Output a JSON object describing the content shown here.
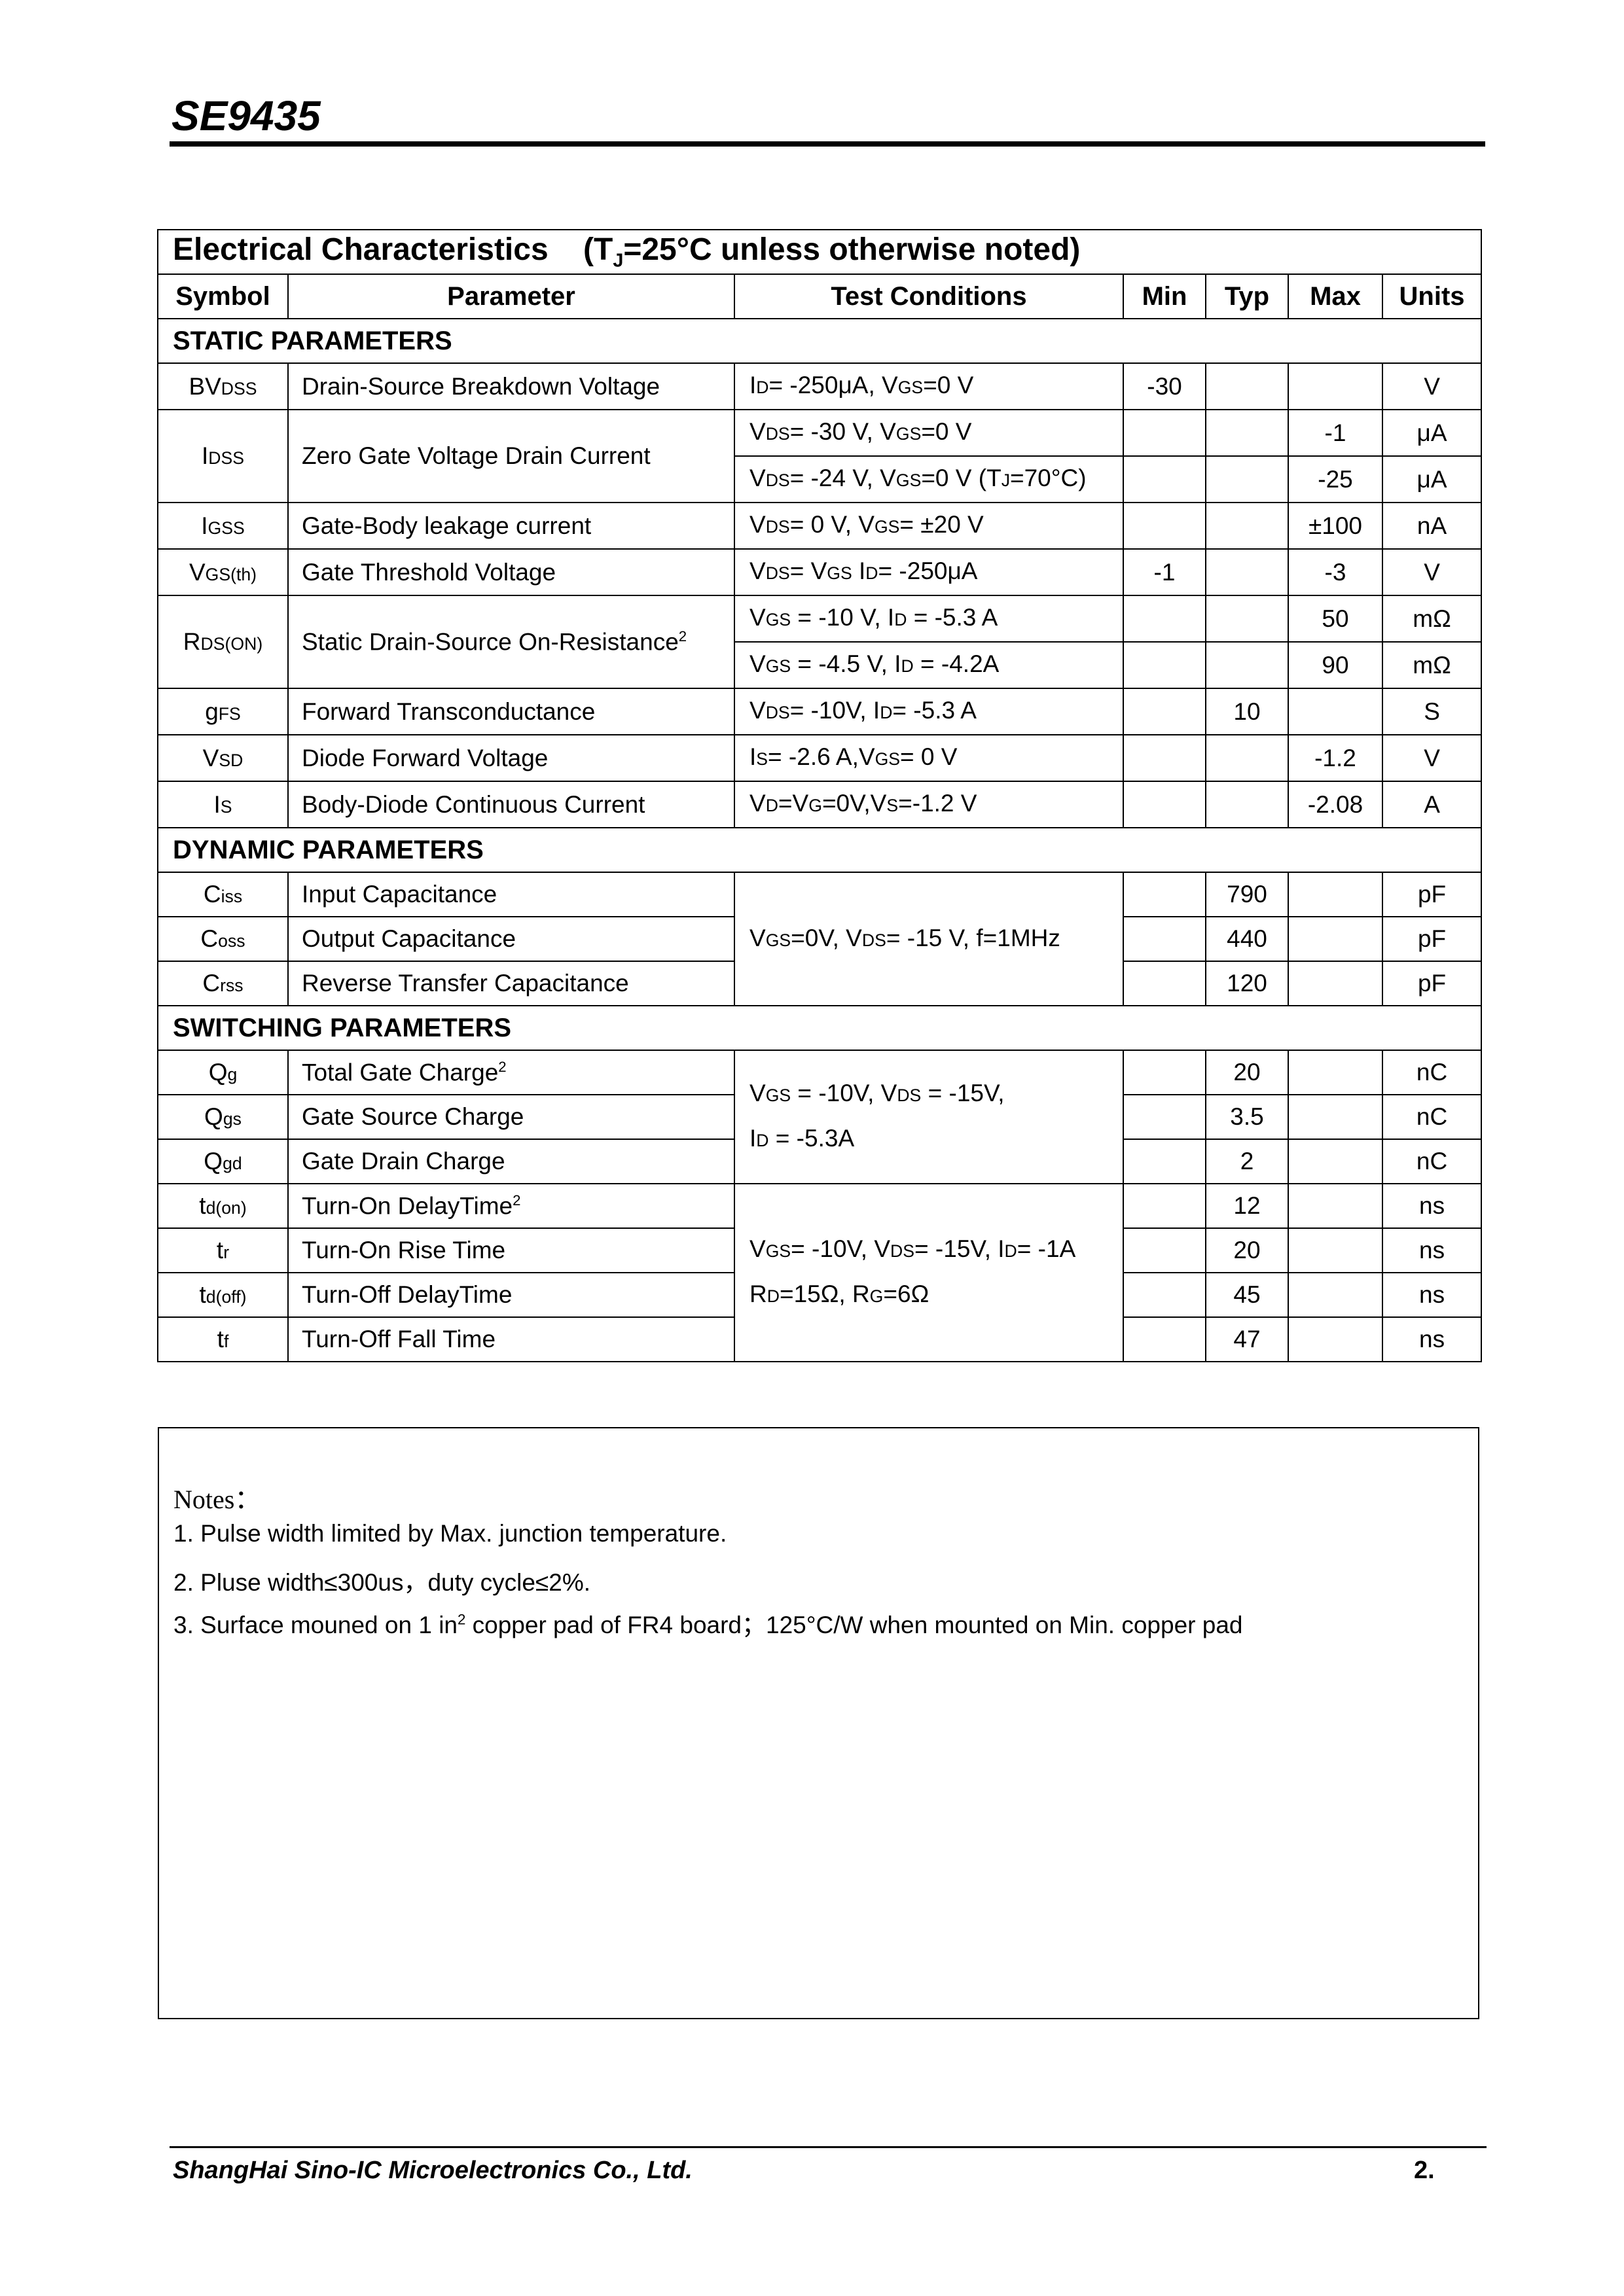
{
  "header": {
    "title": "SE9435"
  },
  "table": {
    "title": "Electrical Characteristics",
    "title_cond_pre": "(T",
    "title_cond_sub": "J",
    "title_cond_post": "=25°C unless otherwise noted)",
    "columns": [
      "Symbol",
      "Parameter",
      "Test Conditions",
      "Min",
      "Typ",
      "Max",
      "Units"
    ],
    "sections": [
      {
        "title": "STATIC PARAMETERS",
        "rows": [
          {
            "symbol": [
              "BV",
              "DSS"
            ],
            "param": "Drain-Source Breakdown Voltage",
            "cond": [
              [
                "I",
                "D",
                "= -250μA, V",
                "GS",
                "=0 V"
              ]
            ],
            "min": "-30",
            "typ": "",
            "max": "",
            "units": "V"
          },
          {
            "symbol": [
              "I",
              "DSS"
            ],
            "param": "Zero Gate Voltage Drain Current",
            "cond": [
              [
                "V",
                "DS",
                "= -30 V, V",
                "GS",
                "=0 V"
              ]
            ],
            "min": "",
            "typ": "",
            "max": "-1",
            "units": "μA"
          },
          {
            "cond": [
              [
                "V",
                "DS",
                "= -24 V, V",
                "GS",
                "=0 V (T",
                "J",
                "=70°C)"
              ]
            ],
            "min": "",
            "typ": "",
            "max": "-25",
            "units": "μA"
          },
          {
            "symbol": [
              "I",
              "GSS"
            ],
            "param": "Gate-Body leakage current",
            "cond": [
              [
                "V",
                "DS",
                "= 0 V, V",
                "GS",
                "= ±20 V"
              ]
            ],
            "min": "",
            "typ": "",
            "max": "±100",
            "units": "nA"
          },
          {
            "symbol": [
              "V",
              "GS(th)"
            ],
            "param": "Gate Threshold Voltage",
            "cond": [
              [
                "V",
                "DS",
                "= V",
                "GS",
                "   I",
                "D",
                "= -250μA"
              ]
            ],
            "min": "-1",
            "typ": "",
            "max": "-3",
            "units": "V"
          },
          {
            "symbol": [
              "R",
              "DS(ON)"
            ],
            "param": "Static Drain-Source On-Resistance",
            "param_sup": "2",
            "cond": [
              [
                "V",
                "GS",
                " = -10 V, I",
                "D",
                " = -5.3 A"
              ]
            ],
            "min": "",
            "typ": "",
            "max": "50",
            "units": "mΩ"
          },
          {
            "cond": [
              [
                "V",
                "GS",
                " = -4.5 V, I",
                "D",
                " = -4.2A"
              ]
            ],
            "min": "",
            "typ": "",
            "max": "90",
            "units": "mΩ"
          },
          {
            "symbol": [
              "g",
              "FS"
            ],
            "param": "Forward Transconductance",
            "cond": [
              [
                "V",
                "DS",
                "= -10V, I",
                "D",
                "= -5.3 A"
              ]
            ],
            "min": "",
            "typ": "10",
            "max": "",
            "units": "S"
          },
          {
            "symbol": [
              "V",
              "SD"
            ],
            "param": "Diode Forward Voltage",
            "cond": [
              [
                "I",
                "S",
                "= -2.6 A,V",
                "GS",
                "= 0 V"
              ]
            ],
            "min": "",
            "typ": "",
            "max": "-1.2",
            "units": "V"
          },
          {
            "symbol": [
              "I",
              "S"
            ],
            "param": "Body-Diode Continuous Current",
            "cond": [
              [
                "V",
                "D",
                "=V",
                "G",
                "=0V,V",
                "S",
                "=-1.2 V"
              ]
            ],
            "min": "",
            "typ": "",
            "max": "-2.08",
            "units": "A"
          }
        ]
      },
      {
        "title": "DYNAMIC PARAMETERS",
        "rows": [
          {
            "symbol": [
              "C",
              "iss"
            ],
            "param": "Input Capacitance",
            "cond": [
              [
                "V",
                "GS",
                "=0V, V",
                "DS",
                "= -15 V, f=1MHz"
              ]
            ],
            "min": "",
            "typ": "790",
            "max": "",
            "units": "pF"
          },
          {
            "symbol": [
              "C",
              "oss"
            ],
            "param": "Output Capacitance",
            "min": "",
            "typ": "440",
            "max": "",
            "units": "pF"
          },
          {
            "symbol": [
              "C",
              "rss"
            ],
            "param": "Reverse Transfer Capacitance",
            "min": "",
            "typ": "120",
            "max": "",
            "units": "pF"
          }
        ]
      },
      {
        "title": "SWITCHING PARAMETERS",
        "rows": [
          {
            "symbol": [
              "Q",
              "g"
            ],
            "param": "Total Gate Charge",
            "param_sup": "2",
            "cond": [
              [
                "V",
                "GS",
                " = -10V,    V",
                "DS",
                " = -15V,"
              ],
              [
                "I",
                "D",
                " = -5.3A"
              ]
            ],
            "min": "",
            "typ": "20",
            "max": "",
            "units": "nC"
          },
          {
            "symbol": [
              "Q",
              "gs"
            ],
            "param": "Gate Source Charge",
            "min": "",
            "typ": "3.5",
            "max": "",
            "units": "nC"
          },
          {
            "symbol": [
              "Q",
              "gd"
            ],
            "param": "Gate Drain Charge",
            "min": "",
            "typ": "2",
            "max": "",
            "units": "nC"
          },
          {
            "symbol": [
              "t",
              "d(on)"
            ],
            "param": "Turn-On DelayTime",
            "param_sup": "2",
            "cond": [
              [
                "V",
                "GS",
                "= -10V, V",
                "DS",
                "= -15V, I",
                "D",
                "= -1A"
              ],
              [
                "R",
                "D",
                "=15Ω, R",
                "G",
                "=6Ω"
              ]
            ],
            "min": "",
            "typ": "12",
            "max": "",
            "units": "ns"
          },
          {
            "symbol": [
              "t",
              "r"
            ],
            "param": "Turn-On Rise Time",
            "min": "",
            "typ": "20",
            "max": "",
            "units": "ns"
          },
          {
            "symbol": [
              "t",
              "d(off)"
            ],
            "param": "Turn-Off DelayTime",
            "min": "",
            "typ": "45",
            "max": "",
            "units": "ns"
          },
          {
            "symbol": [
              "t",
              "f"
            ],
            "param": "Turn-Off Fall Time",
            "min": "",
            "typ": "47",
            "max": "",
            "units": "ns"
          }
        ]
      }
    ]
  },
  "notes": {
    "label": "Notes：",
    "items": [
      {
        "text": "1. Pulse width limited by Max. junction temperature."
      },
      {
        "text": "2. Pluse width≤300us，duty cycle≤2%."
      },
      {
        "pre": "3. Surface mouned on 1 in",
        "sup": "2",
        "post": " copper pad of FR4 board；125°C/W when mounted on Min. copper pad"
      }
    ]
  },
  "footer": {
    "company": "ShangHai Sino-IC Microelectronics Co., Ltd.",
    "page": "2."
  }
}
